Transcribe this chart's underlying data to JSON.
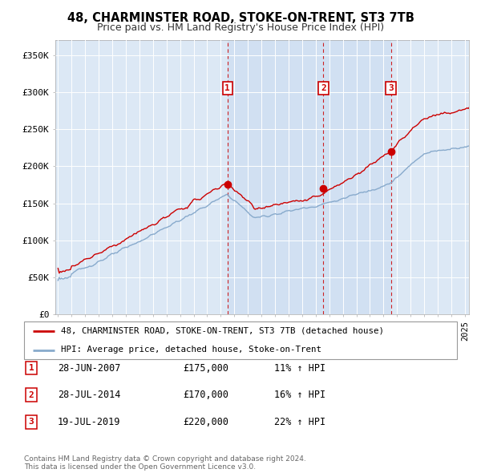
{
  "title": "48, CHARMINSTER ROAD, STOKE-ON-TRENT, ST3 7TB",
  "subtitle": "Price paid vs. HM Land Registry's House Price Index (HPI)",
  "ylabel_ticks": [
    "£0",
    "£50K",
    "£100K",
    "£150K",
    "£200K",
    "£250K",
    "£300K",
    "£350K"
  ],
  "ytick_vals": [
    0,
    50000,
    100000,
    150000,
    200000,
    250000,
    300000,
    350000
  ],
  "ylim": [
    0,
    370000
  ],
  "xlim_start": 1994.8,
  "xlim_end": 2025.3,
  "sale_color": "#cc0000",
  "hpi_color": "#88aacc",
  "sale_dates": [
    2007.49,
    2014.57,
    2019.54
  ],
  "sale_prices": [
    175000,
    170000,
    220000
  ],
  "sale_labels": [
    "1",
    "2",
    "3"
  ],
  "vline_color": "#cc0000",
  "shade_color": "#dce8f5",
  "legend_sale_label": "48, CHARMINSTER ROAD, STOKE-ON-TRENT, ST3 7TB (detached house)",
  "legend_hpi_label": "HPI: Average price, detached house, Stoke-on-Trent",
  "table_rows": [
    [
      "1",
      "28-JUN-2007",
      "£175,000",
      "11% ↑ HPI"
    ],
    [
      "2",
      "28-JUL-2014",
      "£170,000",
      "16% ↑ HPI"
    ],
    [
      "3",
      "19-JUL-2019",
      "£220,000",
      "22% ↑ HPI"
    ]
  ],
  "footnote": "Contains HM Land Registry data © Crown copyright and database right 2024.\nThis data is licensed under the Open Government Licence v3.0.",
  "bg_color": "#ffffff",
  "plot_bg_color": "#dce8f5",
  "grid_color": "#ffffff",
  "title_fontsize": 10.5,
  "subtitle_fontsize": 9,
  "tick_fontsize": 8
}
